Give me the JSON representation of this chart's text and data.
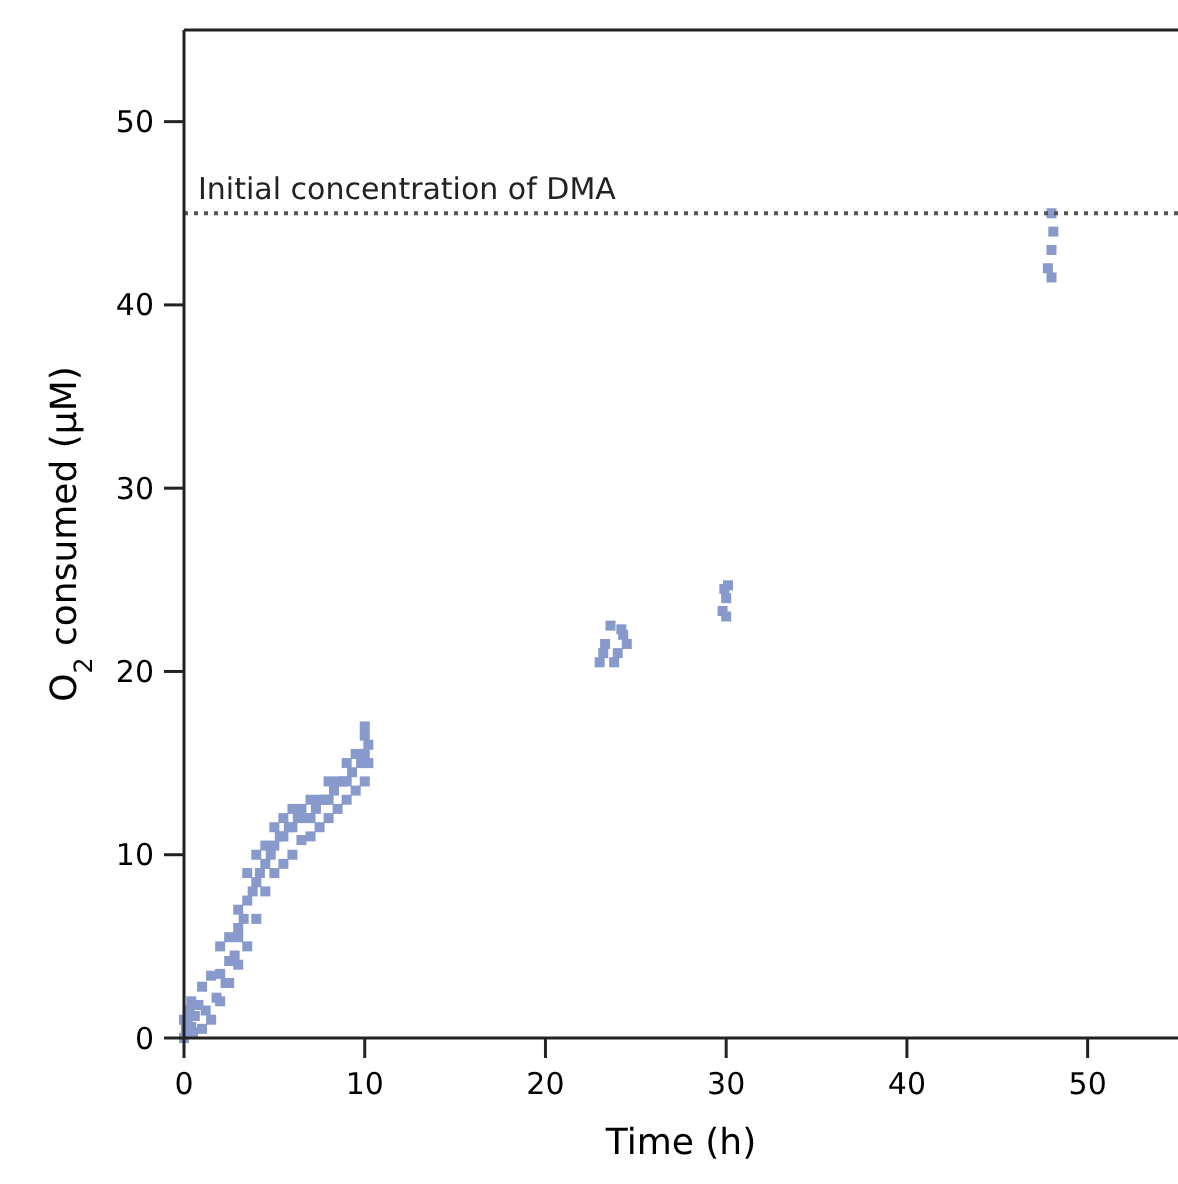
{
  "chart_data": {
    "type": "scatter",
    "xlabel": "Time (h)",
    "ylabel": "O$_{2}$ consumed (μM)",
    "xlim": [
      0,
      55
    ],
    "ylim": [
      0,
      55
    ],
    "xticks": [
      0,
      10,
      20,
      30,
      40,
      50
    ],
    "yticks": [
      0,
      10,
      20,
      30,
      40,
      50
    ],
    "marker": "square",
    "grid": false,
    "ref_lines": [
      {
        "axis": "y",
        "value": 45,
        "label": "Initial concentration of DMA",
        "color": "#555555",
        "line_style": "dotted"
      }
    ],
    "series": [
      {
        "color": "#8899cc",
        "x": [
          0,
          0.1,
          0.2,
          0.3,
          0.4,
          0.5,
          0,
          0.4,
          0.6,
          0.8,
          1,
          1,
          1.2,
          1.5,
          1.5,
          1.8,
          2,
          2,
          2,
          2.3,
          2.5,
          2.5,
          2.5,
          2.8,
          3,
          3,
          3,
          3,
          3.3,
          3.5,
          3.5,
          3.5,
          3.8,
          4,
          4,
          4,
          4.2,
          4.5,
          4.5,
          4.5,
          4.8,
          5,
          5,
          5,
          5.3,
          5.5,
          5.5,
          5.5,
          5.8,
          6,
          6,
          6,
          6.3,
          6.5,
          6.5,
          6.8,
          7,
          7,
          7,
          7.3,
          7.5,
          7.5,
          7.8,
          8,
          8,
          8,
          8.3,
          8.5,
          8.5,
          8.8,
          9,
          9,
          9,
          9.3,
          9.5,
          9.5,
          9.8,
          10,
          10,
          10,
          10,
          10.2,
          10.2,
          23,
          23.3,
          23.6,
          24,
          24.3,
          24.5,
          23.2,
          23.8,
          24.2,
          29.8,
          29.9,
          30,
          30,
          30.1,
          47.8,
          48,
          48,
          48,
          48.1
        ],
        "values": [
          0,
          0.5,
          1,
          1.5,
          2,
          0.3,
          1,
          0.6,
          1.2,
          1.8,
          0.5,
          2.8,
          1.5,
          1,
          3.4,
          2.2,
          2,
          3.5,
          5,
          3,
          3,
          4.2,
          5.5,
          4.5,
          4,
          5.5,
          7,
          6,
          6.5,
          5,
          7.5,
          9,
          8,
          6.5,
          8.5,
          10,
          9,
          8,
          9.5,
          10.5,
          10,
          9,
          10.5,
          11.5,
          11,
          9.5,
          11,
          12,
          11.5,
          10,
          11.5,
          12.5,
          12,
          10.8,
          12.5,
          12,
          11,
          12,
          13,
          12.5,
          11.5,
          13,
          13,
          12,
          13,
          14,
          13.5,
          12.5,
          14,
          14,
          13,
          14,
          15,
          14.5,
          13.5,
          15.5,
          15,
          14,
          15.5,
          16.5,
          17,
          15,
          16,
          20.5,
          21.5,
          22.5,
          21,
          22,
          21.5,
          21,
          20.5,
          22.3,
          23.3,
          24.5,
          23,
          24,
          24.7,
          42,
          41.5,
          43,
          45,
          44
        ]
      }
    ]
  }
}
